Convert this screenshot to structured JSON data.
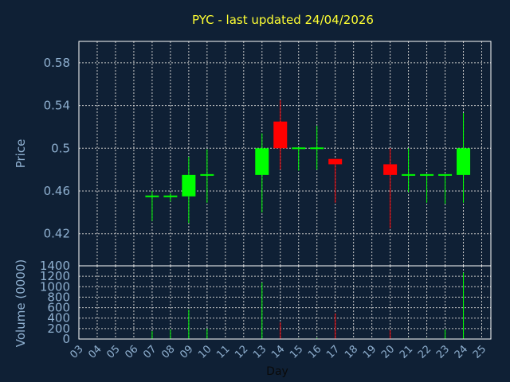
{
  "chart_data": {
    "type": "candlestick",
    "title": "PYC - last updated 24/04/2026",
    "colors": {
      "background": "#0f2035",
      "title": "#ffff33",
      "axis_text": "#8fb0d0",
      "frame": "#ffffff",
      "grid": "#c8c8c8",
      "up": "#00ff00",
      "down": "#ff0000"
    },
    "grid": true,
    "xlabel": "Day",
    "x_ticks": [
      "03",
      "04",
      "05",
      "06",
      "07",
      "08",
      "09",
      "10",
      "11",
      "12",
      "13",
      "14",
      "15",
      "16",
      "17",
      "18",
      "19",
      "20",
      "21",
      "22",
      "23",
      "24",
      "25"
    ],
    "price_panel": {
      "ylabel": "Price",
      "ylim": [
        0.39,
        0.6
      ],
      "y_ticks": [
        0.42,
        0.46,
        0.5,
        0.54,
        0.58
      ],
      "y_tick_labels": [
        "0.42",
        "0.46",
        "0.5",
        "0.54",
        "0.58"
      ]
    },
    "volume_panel": {
      "ylabel": "Volume (0000)",
      "ylim": [
        0,
        1400
      ],
      "y_ticks": [
        0,
        200,
        400,
        600,
        800,
        1000,
        1200,
        1400
      ],
      "y_tick_labels": [
        "0",
        "200",
        "400",
        "600",
        "800",
        "1000",
        "1200",
        "1400"
      ]
    },
    "candles": [
      {
        "day": "07",
        "open": 0.455,
        "high": 0.46,
        "low": 0.432,
        "close": 0.455,
        "volume": 150
      },
      {
        "day": "08",
        "open": 0.455,
        "high": 0.458,
        "low": 0.45,
        "close": 0.455,
        "volume": 180
      },
      {
        "day": "09",
        "open": 0.455,
        "high": 0.492,
        "low": 0.43,
        "close": 0.475,
        "volume": 560
      },
      {
        "day": "10",
        "open": 0.475,
        "high": 0.499,
        "low": 0.449,
        "close": 0.475,
        "volume": 200
      },
      {
        "day": "13",
        "open": 0.475,
        "high": 0.514,
        "low": 0.44,
        "close": 0.5,
        "volume": 1080
      },
      {
        "day": "14",
        "open": 0.525,
        "high": 0.545,
        "low": 0.48,
        "close": 0.5,
        "volume": 320
      },
      {
        "day": "15",
        "open": 0.5,
        "high": 0.5,
        "low": 0.479,
        "close": 0.5,
        "volume": 10
      },
      {
        "day": "16",
        "open": 0.5,
        "high": 0.521,
        "low": 0.48,
        "close": 0.5,
        "volume": 20
      },
      {
        "day": "17",
        "open": 0.49,
        "high": 0.49,
        "low": 0.449,
        "close": 0.485,
        "volume": 490
      },
      {
        "day": "20",
        "open": 0.485,
        "high": 0.5,
        "low": 0.425,
        "close": 0.475,
        "volume": 170
      },
      {
        "day": "21",
        "open": 0.475,
        "high": 0.5,
        "low": 0.459,
        "close": 0.475,
        "volume": 10
      },
      {
        "day": "22",
        "open": 0.475,
        "high": 0.476,
        "low": 0.449,
        "close": 0.475,
        "volume": 10
      },
      {
        "day": "23",
        "open": 0.475,
        "high": 0.475,
        "low": 0.448,
        "close": 0.475,
        "volume": 180
      },
      {
        "day": "24",
        "open": 0.475,
        "high": 0.533,
        "low": 0.449,
        "close": 0.5,
        "volume": 1270
      }
    ]
  }
}
